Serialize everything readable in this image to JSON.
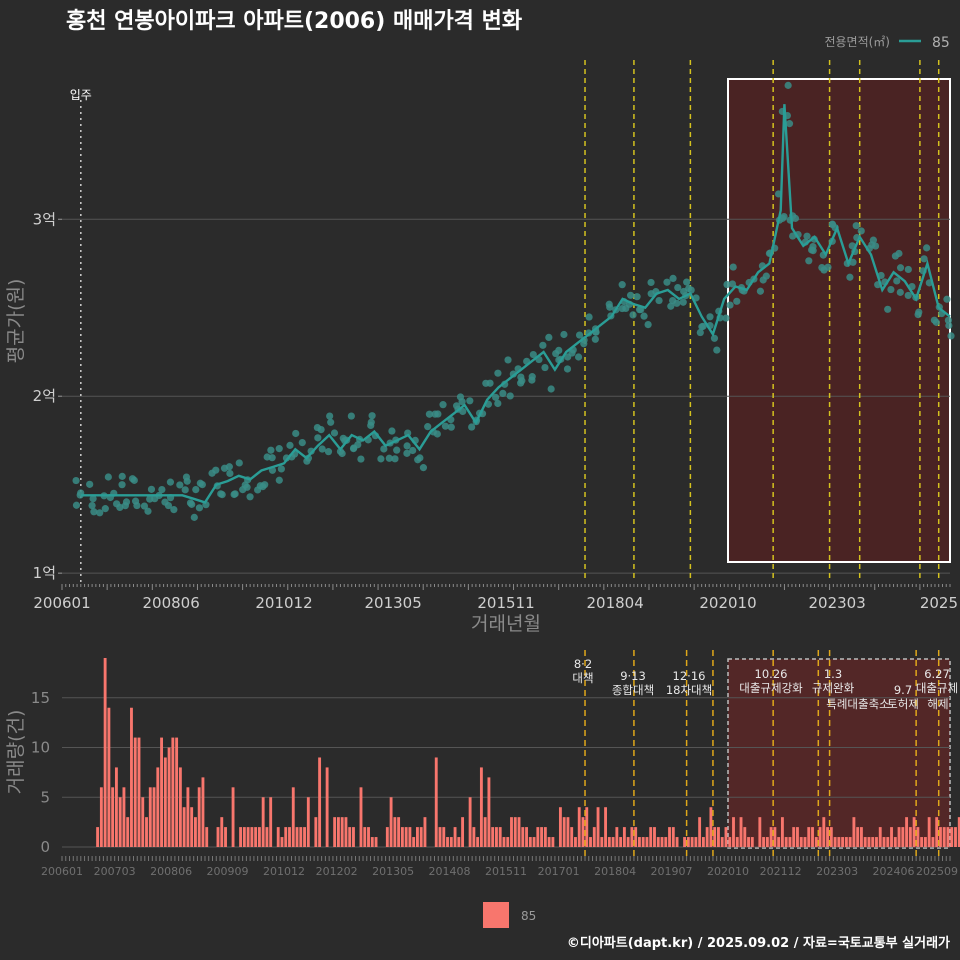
{
  "title": "홍천 연봉아이파크 아파트(2006) 매매가격 변화",
  "legend_top": {
    "title": "전용면적(㎡)",
    "item": "85"
  },
  "legend_bottom": {
    "item": "85"
  },
  "caption": "©디아파트(dapt.kr) / 2025.09.02 / 자료=국토교통부 실거래가",
  "colors": {
    "line": "#2a9d96",
    "point": "#3a8c86",
    "bar": "#f8766d",
    "vline": "#d4c21f",
    "highlight": "#4a2323"
  },
  "chart_data": [
    {
      "type": "line",
      "title": "홍천 연봉아이파크 아파트(2006) 매매가격 변화",
      "xlabel": "거래년월",
      "ylabel": "평균가(원)",
      "x_tick_labels": [
        "200601",
        "200806",
        "201012",
        "201305",
        "201511",
        "201804",
        "202010",
        "202303",
        "2025"
      ],
      "y_tick_labels": [
        "1억",
        "2억",
        "3억"
      ],
      "y_ticks": [
        1,
        2,
        3
      ],
      "y_unit": "억원",
      "ylim": [
        0.95,
        3.9
      ],
      "xlim": [
        "2006-01",
        "2025-09"
      ],
      "annotation": {
        "label": "입주",
        "x": "2006-06"
      },
      "policy_lines": [
        "2017-08",
        "2018-09",
        "2019-12",
        "2021-10",
        "2023-01",
        "2023-09",
        "2025-01",
        "2025-06"
      ],
      "highlight_range": [
        "2020-10",
        "2025-09"
      ],
      "series": [
        {
          "name": "85",
          "points": [
            [
              "2006-06",
              1.44
            ],
            [
              "2006-09",
              1.44
            ],
            [
              "2006-12",
              1.44
            ],
            [
              "2007-03",
              1.44
            ],
            [
              "2007-06",
              1.44
            ],
            [
              "2007-09",
              1.44
            ],
            [
              "2007-12",
              1.44
            ],
            [
              "2008-03",
              1.44
            ],
            [
              "2008-06",
              1.44
            ],
            [
              "2008-09",
              1.44
            ],
            [
              "2008-12",
              1.42
            ],
            [
              "2009-03",
              1.4
            ],
            [
              "2009-06",
              1.5
            ],
            [
              "2009-09",
              1.52
            ],
            [
              "2009-12",
              1.55
            ],
            [
              "2010-03",
              1.53
            ],
            [
              "2010-06",
              1.58
            ],
            [
              "2010-09",
              1.6
            ],
            [
              "2010-12",
              1.62
            ],
            [
              "2011-03",
              1.7
            ],
            [
              "2011-06",
              1.65
            ],
            [
              "2011-09",
              1.72
            ],
            [
              "2011-12",
              1.78
            ],
            [
              "2012-03",
              1.7
            ],
            [
              "2012-06",
              1.78
            ],
            [
              "2012-09",
              1.75
            ],
            [
              "2012-12",
              1.8
            ],
            [
              "2013-03",
              1.72
            ],
            [
              "2013-06",
              1.75
            ],
            [
              "2013-09",
              1.78
            ],
            [
              "2013-12",
              1.7
            ],
            [
              "2014-03",
              1.8
            ],
            [
              "2014-06",
              1.85
            ],
            [
              "2014-09",
              1.9
            ],
            [
              "2014-12",
              1.95
            ],
            [
              "2015-03",
              1.85
            ],
            [
              "2015-06",
              1.98
            ],
            [
              "2015-09",
              2.05
            ],
            [
              "2015-12",
              2.1
            ],
            [
              "2016-03",
              2.15
            ],
            [
              "2016-06",
              2.2
            ],
            [
              "2016-09",
              2.25
            ],
            [
              "2016-12",
              2.15
            ],
            [
              "2017-03",
              2.25
            ],
            [
              "2017-06",
              2.3
            ],
            [
              "2017-09",
              2.35
            ],
            [
              "2017-12",
              2.4
            ],
            [
              "2018-03",
              2.45
            ],
            [
              "2018-06",
              2.55
            ],
            [
              "2018-09",
              2.52
            ],
            [
              "2018-12",
              2.5
            ],
            [
              "2019-03",
              2.58
            ],
            [
              "2019-06",
              2.6
            ],
            [
              "2019-09",
              2.55
            ],
            [
              "2019-12",
              2.58
            ],
            [
              "2020-03",
              2.45
            ],
            [
              "2020-06",
              2.35
            ],
            [
              "2020-09",
              2.55
            ],
            [
              "2020-12",
              2.62
            ],
            [
              "2021-03",
              2.6
            ],
            [
              "2021-06",
              2.7
            ],
            [
              "2021-09",
              2.75
            ],
            [
              "2021-12",
              3.05
            ],
            [
              "2022-01",
              3.65
            ],
            [
              "2022-03",
              2.95
            ],
            [
              "2022-06",
              2.85
            ],
            [
              "2022-09",
              2.9
            ],
            [
              "2022-12",
              2.8
            ],
            [
              "2023-03",
              2.95
            ],
            [
              "2023-06",
              2.75
            ],
            [
              "2023-09",
              2.9
            ],
            [
              "2023-12",
              2.8
            ],
            [
              "2024-03",
              2.6
            ],
            [
              "2024-06",
              2.7
            ],
            [
              "2024-09",
              2.65
            ],
            [
              "2024-12",
              2.55
            ],
            [
              "2025-03",
              2.75
            ],
            [
              "2025-06",
              2.5
            ],
            [
              "2025-09",
              2.45
            ]
          ]
        }
      ]
    },
    {
      "type": "bar",
      "xlabel": "",
      "ylabel": "거래량(건)",
      "x_tick_labels": [
        "200601",
        "200703",
        "200806",
        "200909",
        "201012",
        "201202",
        "201305",
        "201408",
        "201511",
        "201701",
        "201804",
        "201907",
        "202010",
        "202112",
        "202303",
        "202406",
        "202509"
      ],
      "y_tick_labels": [
        "0",
        "5",
        "10",
        "15"
      ],
      "y_ticks": [
        0,
        5,
        10,
        15
      ],
      "ylim": [
        0,
        19
      ],
      "highlight_range": [
        "2020-10",
        "2025-09"
      ],
      "policy_lines": [
        "2017-08",
        "2018-09",
        "2019-11",
        "2020-06",
        "2021-10",
        "2022-10",
        "2023-01",
        "2024-12",
        "2025-06"
      ],
      "policies": [
        {
          "date": "8·2",
          "text": "대책"
        },
        {
          "date": "9·13",
          "text": "종합대책"
        },
        {
          "date": "12·16",
          "text": "18차대책"
        },
        {
          "date": "10.26",
          "text": "대출규제강화"
        },
        {
          "date": "1.3",
          "text": "규제완화"
        },
        {
          "date": "",
          "text": "특례대출축소"
        },
        {
          "date": "9.7",
          "text": "토허제"
        },
        {
          "date": "6.27",
          "text": "대출규제"
        },
        {
          "date": "",
          "text": "해제"
        }
      ],
      "series": [
        {
          "name": "85",
          "values": [
            0,
            0,
            0,
            0,
            0,
            0,
            0,
            0,
            0,
            2,
            6,
            19,
            14,
            6,
            8,
            5,
            6,
            3,
            14,
            11,
            11,
            5,
            3,
            6,
            6,
            8,
            11,
            9,
            10,
            11,
            11,
            8,
            4,
            6,
            4,
            3,
            6,
            7,
            2,
            0,
            0,
            2,
            3,
            2,
            0,
            6,
            0,
            2,
            2,
            2,
            2,
            2,
            2,
            5,
            2,
            5,
            0,
            2,
            1,
            2,
            2,
            6,
            2,
            2,
            2,
            5,
            0,
            3,
            9,
            0,
            8,
            0,
            3,
            3,
            3,
            3,
            2,
            2,
            0,
            6,
            2,
            2,
            1,
            1,
            0,
            0,
            2,
            5,
            3,
            3,
            2,
            2,
            2,
            1,
            2,
            2,
            3,
            0,
            0,
            9,
            2,
            2,
            1,
            1,
            2,
            1,
            3,
            0,
            5,
            2,
            1,
            8,
            3,
            7,
            2,
            2,
            2,
            1,
            1,
            3,
            3,
            3,
            2,
            2,
            1,
            1,
            2,
            2,
            2,
            1,
            1,
            0,
            4,
            3,
            3,
            2,
            1,
            4,
            3,
            4,
            1,
            2,
            4,
            1,
            4,
            1,
            1,
            2,
            1,
            2,
            1,
            2,
            2,
            1,
            1,
            1,
            2,
            2,
            1,
            1,
            1,
            2,
            2,
            1,
            0,
            1,
            1,
            1,
            1,
            3,
            1,
            2,
            4,
            2,
            2,
            1,
            2,
            1,
            3,
            1,
            3,
            2,
            1,
            1,
            0,
            3,
            1,
            1,
            2,
            2,
            1,
            3,
            1,
            1,
            2,
            2,
            1,
            1,
            2,
            2,
            1,
            2,
            3,
            2,
            2,
            1,
            1,
            1,
            1,
            1,
            3,
            2,
            2,
            1,
            1,
            1,
            1,
            2,
            1,
            1,
            2,
            1,
            2,
            2,
            3,
            2,
            3,
            2,
            1,
            1,
            3,
            1,
            3,
            2,
            2,
            2,
            2,
            2,
            3,
            1,
            2,
            4,
            3,
            1,
            1,
            2,
            1,
            1,
            2,
            2,
            3,
            1,
            2,
            1,
            2,
            2
          ]
        }
      ]
    }
  ]
}
